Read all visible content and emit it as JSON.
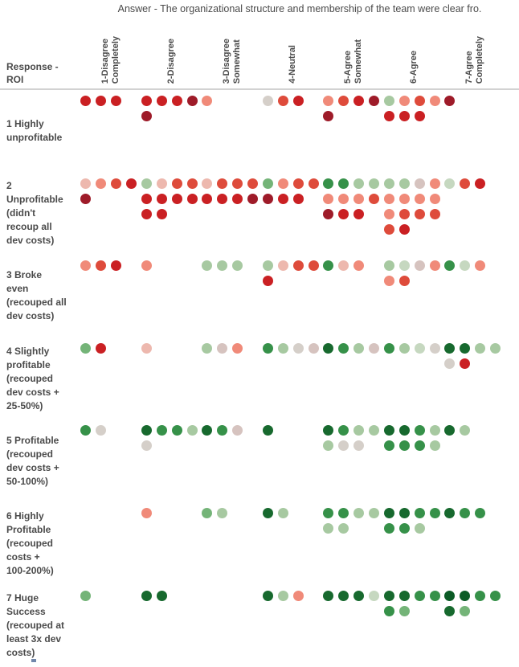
{
  "title": "Answer - The organizational structure and membership of the team were clear fro.",
  "row_header_display": "Response -\nROI",
  "columns_display": [
    "1-Disagree\nCompletely",
    "2-Disagree",
    "3-Disagree\nSomewhat",
    "4-Neutral",
    "5-Agree\nSomewhat",
    "6-Agree",
    "7-Agree\nCompletely"
  ],
  "chart_data": {
    "type": "dot-matrix",
    "title": "Answer - The organizational structure and membership of the team were clear fro.",
    "x_dimension": "Answer",
    "x_categories": [
      "1-Disagree Completely",
      "2-Disagree",
      "3-Disagree Somewhat",
      "4-Neutral",
      "5-Agree Somewhat",
      "6-Agree",
      "7-Agree Completely"
    ],
    "y_dimension": "Response - ROI",
    "y_categories": [
      "1 Highly unprofitable",
      "2 Unprofitable (didn't recoup all dev costs)",
      "3 Broke even (recouped all dev costs)",
      "4 Slightly profitable (recouped dev costs + 25-50%)",
      "5 Profitable (recouped dev costs + 50-100%)",
      "6 Highly Profitable (recouped costs + 100-200%)",
      "7 Huge Success (recouped at least 3x dev costs)"
    ],
    "counts": [
      [
        3,
        5,
        1,
        3,
        5,
        7,
        1
      ],
      [
        5,
        10,
        8,
        7,
        11,
        14,
        3
      ],
      [
        3,
        1,
        3,
        5,
        3,
        6,
        3
      ],
      [
        2,
        1,
        3,
        4,
        4,
        4,
        6
      ],
      [
        2,
        5,
        3,
        1,
        7,
        8,
        2
      ],
      [
        0,
        1,
        2,
        2,
        6,
        7,
        3
      ],
      [
        1,
        2,
        0,
        3,
        4,
        6,
        6
      ]
    ],
    "wrap_per_line": 4,
    "color_legend": "each dot is one respondent; color encodes sentiment from dark red (negative) through gray (neutral) to dark green (positive)",
    "palette": {
      "dr": "#9e1b29",
      "r": "#ca2023",
      "mr": "#de4b3b",
      "sa": "#f08a79",
      "pk": "#edb8ae",
      "mv": "#d6c3bf",
      "gy": "#d5cfc9",
      "pg": "#c6d8c0",
      "lg": "#a7c9a1",
      "mlg": "#74b478",
      "g": "#369149",
      "dg": "#17692e",
      "ddg": "#0b5b26"
    },
    "rows": [
      {
        "label": "1 Highly unprofitable",
        "label_display": "1 Highly\nunprofitable",
        "cells": [
          [
            "r",
            "r",
            "r"
          ],
          [
            "r",
            "r",
            "r",
            "dr",
            "dr"
          ],
          [
            "sa"
          ],
          [
            "gy",
            "mr",
            "r"
          ],
          [
            "sa",
            "mr",
            "r",
            "dr",
            "dr"
          ],
          [
            "lg",
            "sa",
            "mr",
            "sa",
            "r",
            "r",
            "r"
          ],
          [
            "dr"
          ]
        ]
      },
      {
        "label": "2 Unprofitable (didn't recoup all dev costs)",
        "label_display": "2\nUnprofitable\n(didn't\nrecoup all\ndev costs)",
        "cells": [
          [
            "pk",
            "sa",
            "mr",
            "r",
            "dr"
          ],
          [
            "lg",
            "pk",
            "mr",
            "mr",
            "r",
            "r",
            "r",
            "r",
            "r",
            "r"
          ],
          [
            "pk",
            "mr",
            "mr",
            "mr",
            "r",
            "r",
            "r",
            "dr"
          ],
          [
            "mlg",
            "sa",
            "mr",
            "mr",
            "dr",
            "r",
            "r"
          ],
          [
            "g",
            "g",
            "lg",
            "lg",
            "sa",
            "sa",
            "sa",
            "mr",
            "dr",
            "r",
            "r"
          ],
          [
            "lg",
            "lg",
            "mv",
            "sa",
            "sa",
            "sa",
            "sa",
            "sa",
            "sa",
            "mr",
            "mr",
            "mr",
            "mr",
            "r"
          ],
          [
            "pg",
            "mr",
            "r"
          ]
        ]
      },
      {
        "label": "3 Broke even (recouped all dev costs)",
        "label_display": "3  Broke\neven\n(recouped all\ndev costs)",
        "cells": [
          [
            "sa",
            "mr",
            "r"
          ],
          [
            "sa"
          ],
          [
            "lg",
            "lg",
            "lg"
          ],
          [
            "lg",
            "pk",
            "mr",
            "mr",
            "r"
          ],
          [
            "g",
            "pk",
            "sa"
          ],
          [
            "lg",
            "pg",
            "mv",
            "sa",
            "sa",
            "mr"
          ],
          [
            "g",
            "pg",
            "sa"
          ]
        ]
      },
      {
        "label": "4 Slightly profitable (recouped dev costs + 25-50%)",
        "label_display": "4  Slightly\nprofitable\n(recouped\ndev costs +\n25-50%)",
        "cells": [
          [
            "mlg",
            "r"
          ],
          [
            "pk"
          ],
          [
            "lg",
            "mv",
            "sa"
          ],
          [
            "g",
            "lg",
            "gy",
            "mv"
          ],
          [
            "dg",
            "g",
            "lg",
            "mv"
          ],
          [
            "g",
            "lg",
            "pg",
            "gy"
          ],
          [
            "dg",
            "dg",
            "lg",
            "lg",
            "gy",
            "r"
          ]
        ]
      },
      {
        "label": "5 Profitable (recouped dev costs + 50-100%)",
        "label_display": "5  Profitable\n(recouped\ndev costs +\n50-100%)",
        "cells": [
          [
            "g",
            "gy"
          ],
          [
            "dg",
            "g",
            "g",
            "lg",
            "gy"
          ],
          [
            "dg",
            "g",
            "mv"
          ],
          [
            "dg"
          ],
          [
            "dg",
            "g",
            "lg",
            "lg",
            "lg",
            "gy",
            "gy"
          ],
          [
            "dg",
            "dg",
            "g",
            "lg",
            "g",
            "g",
            "g",
            "lg"
          ],
          [
            "dg",
            "lg"
          ]
        ]
      },
      {
        "label": "6 Highly Profitable (recouped costs + 100-200%)",
        "label_display": "6  Highly\nProfitable\n(recouped\ncosts +\n100-200%)",
        "cells": [
          [],
          [
            "sa"
          ],
          [
            "mlg",
            "lg"
          ],
          [
            "dg",
            "lg"
          ],
          [
            "g",
            "g",
            "lg",
            "lg",
            "lg",
            "lg"
          ],
          [
            "dg",
            "dg",
            "g",
            "g",
            "g",
            "g",
            "lg"
          ],
          [
            "dg",
            "g",
            "g"
          ]
        ]
      },
      {
        "label": "7 Huge Success (recouped at least 3x dev costs)",
        "label_display": "7  Huge\nSuccess\n(recouped at\nleast 3x dev\ncosts)",
        "cells": [
          [
            "mlg"
          ],
          [
            "dg",
            "dg"
          ],
          [],
          [
            "dg",
            "lg",
            "sa"
          ],
          [
            "dg",
            "dg",
            "dg",
            "pg"
          ],
          [
            "dg",
            "dg",
            "g",
            "g",
            "g",
            "mlg"
          ],
          [
            "ddg",
            "ddg",
            "g",
            "g",
            "dg",
            "mlg"
          ]
        ]
      }
    ]
  }
}
